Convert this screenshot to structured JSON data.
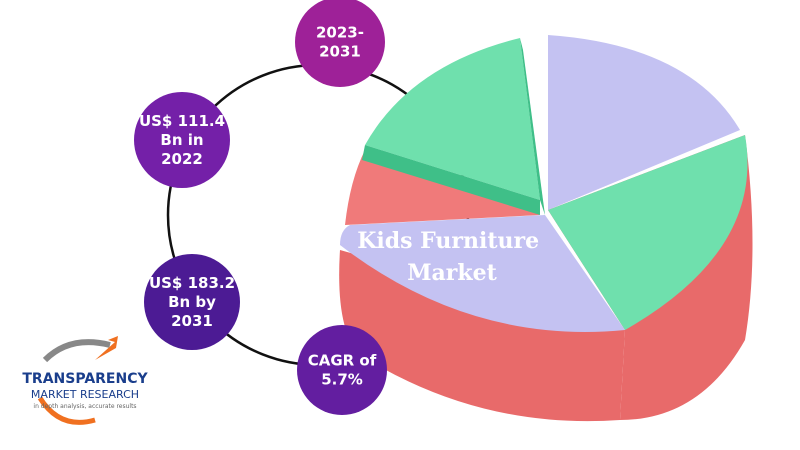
{
  "infographic": {
    "title": [
      "Kids Furniture",
      "Market"
    ],
    "nodes": [
      {
        "lines": [
          "2023-",
          "2031"
        ]
      },
      {
        "lines": [
          "US$ 111.4",
          "Bn in",
          "2022"
        ]
      },
      {
        "lines": [
          "US$ 183.2",
          "Bn by",
          "2031"
        ]
      },
      {
        "lines": [
          "CAGR of",
          "5.7%"
        ]
      }
    ],
    "logo": {
      "name": "TRANSPARENCY",
      "sub": "MARKET RESEARCH",
      "tagline": "in depth analysis, accurate results"
    }
  }
}
